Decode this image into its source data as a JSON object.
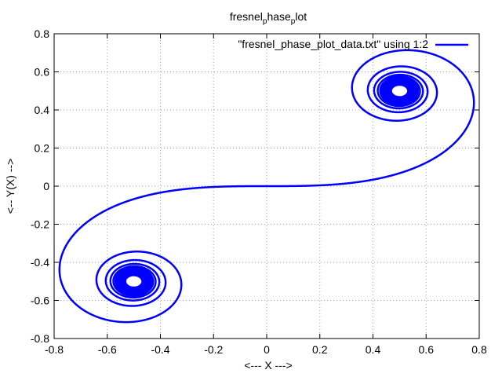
{
  "chart_data": {
    "type": "line",
    "title_main": "fresnel",
    "title_sub1": "p",
    "title_mid": "hase",
    "title_sub2": "p",
    "title_end": "lot",
    "xlabel": "<--- X --->",
    "ylabel": "<-- Y(X) -->",
    "xlim": [
      -0.8,
      0.8
    ],
    "ylim": [
      -0.8,
      0.8
    ],
    "xticks": [
      -0.8,
      -0.6,
      -0.4,
      -0.2,
      0,
      0.2,
      0.4,
      0.6,
      0.8
    ],
    "xtick_labels": [
      "-0.8",
      "-0.6",
      "-0.4",
      "-0.2",
      "0",
      "0.2",
      "0.4",
      "0.6",
      "0.8"
    ],
    "yticks": [
      -0.8,
      -0.6,
      -0.4,
      -0.2,
      0,
      0.2,
      0.4,
      0.6,
      0.8
    ],
    "ytick_labels": [
      "-0.8",
      "-0.6",
      "-0.4",
      "-0.2",
      "0",
      "0.2",
      "0.4",
      "0.6",
      "0.8"
    ],
    "grid": true,
    "legend_position": "top-right",
    "series": [
      {
        "name": "\"fresnel_phase_plot_data.txt\" using 1:2",
        "color": "#0000ff",
        "x_from": -10,
        "x_to": 10,
        "function": "Fresnel integrals (C(t), S(t))"
      }
    ]
  }
}
